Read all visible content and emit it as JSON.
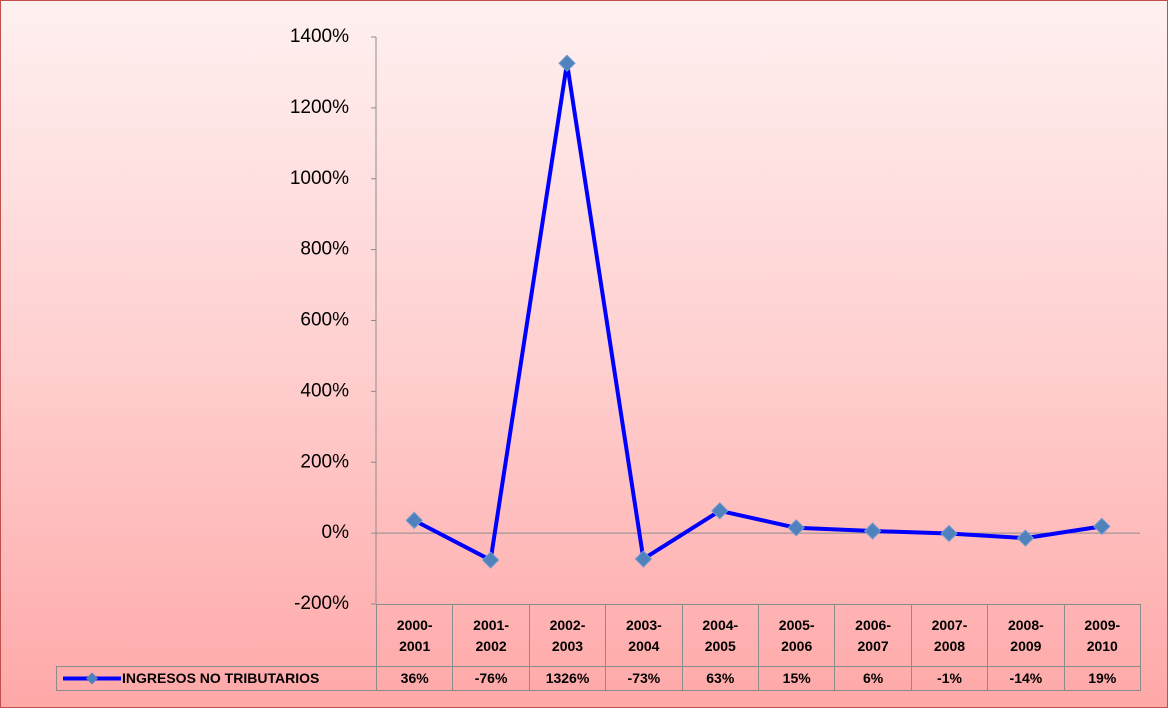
{
  "chart_data": {
    "type": "line",
    "categories": [
      "2000-2001",
      "2001-2002",
      "2002-2003",
      "2003-2004",
      "2004-2005",
      "2005-2006",
      "2006-2007",
      "2007-2008",
      "2008-2009",
      "2009-2010"
    ],
    "series": [
      {
        "name": "INGRESOS NO TRIBUTARIOS",
        "color": "#0000ff",
        "marker_color": "#4f81bd",
        "values": [
          36,
          -76,
          1326,
          -73,
          63,
          15,
          6,
          -1,
          -14,
          19
        ],
        "value_labels": [
          "36%",
          "-76%",
          "1326%",
          "-73%",
          "63%",
          "15%",
          "6%",
          "-1%",
          "-14%",
          "19%"
        ]
      }
    ],
    "ylim": [
      -200,
      1400
    ],
    "yticks": [
      {
        "value": -200,
        "label": "-200%"
      },
      {
        "value": 0,
        "label": "0%"
      },
      {
        "value": 200,
        "label": "200%"
      },
      {
        "value": 400,
        "label": "400%"
      },
      {
        "value": 600,
        "label": "600%"
      },
      {
        "value": 800,
        "label": "800%"
      },
      {
        "value": 1000,
        "label": "1000%"
      },
      {
        "value": 1200,
        "label": "1200%"
      },
      {
        "value": 1400,
        "label": "1400%"
      }
    ]
  }
}
